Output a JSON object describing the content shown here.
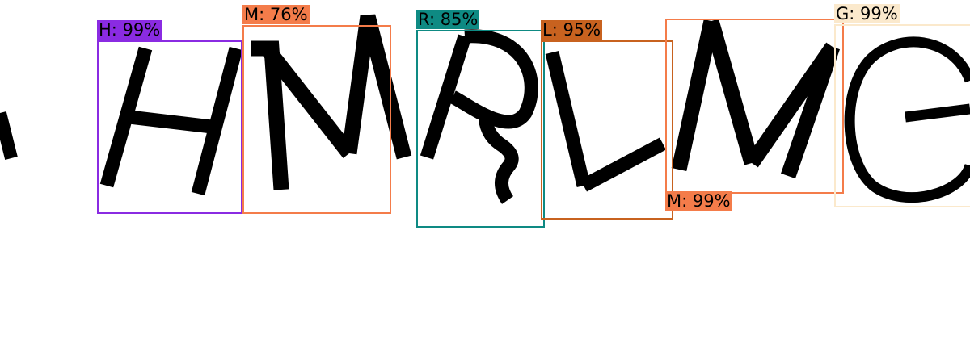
{
  "detections": [
    {
      "label": "H: 99%",
      "color": "#8a2be2"
    },
    {
      "label": "M: 76%",
      "color": "#f47c4a"
    },
    {
      "label": "R: 85%",
      "color": "#0e8a83"
    },
    {
      "label": "L: 95%",
      "color": "#c8621f"
    },
    {
      "label": "M: 99%",
      "color": "#f47c4a"
    },
    {
      "label": "G: 99%",
      "color": "#fbe9cc"
    }
  ]
}
